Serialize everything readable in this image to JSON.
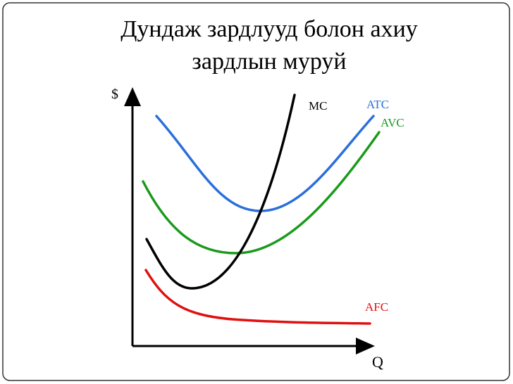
{
  "title": [
    "Дундаж зардлууд болон ахиу",
    "зардлын муруй"
  ],
  "diagram": {
    "y_axis_label": "$",
    "x_axis_label": "Q",
    "curves": [
      {
        "label": "MC"
      },
      {
        "label": "ATC"
      },
      {
        "label": "AVC"
      },
      {
        "label": "AFC"
      }
    ]
  }
}
